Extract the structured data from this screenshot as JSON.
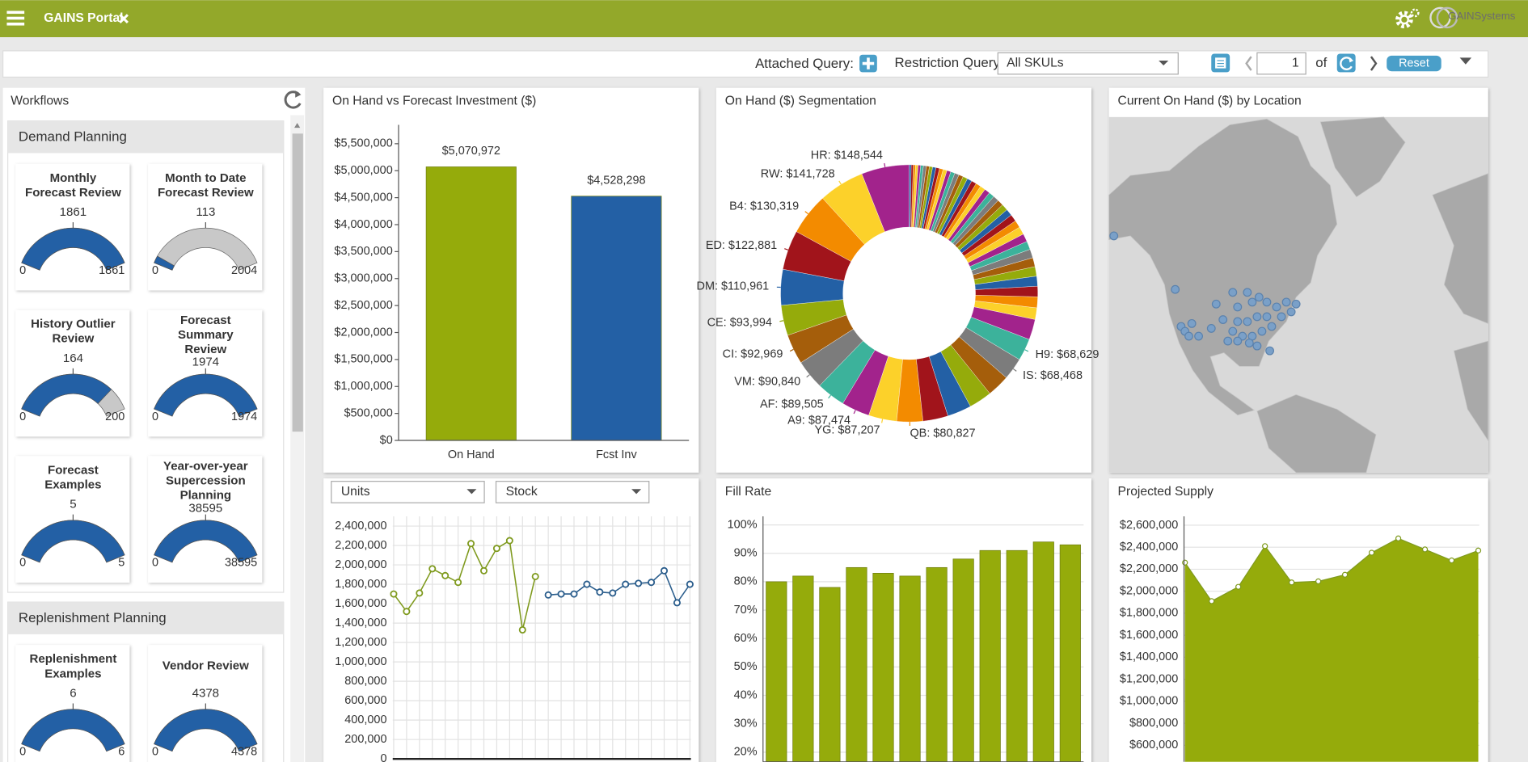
{
  "header": {
    "title": "GAINS Portal",
    "logo": "GAINSystems"
  },
  "toolbar": {
    "attached_query": "Attached Query:",
    "restriction_query": "Restriction Query:",
    "restriction_value": "All SKULs",
    "page": 1,
    "of": "of",
    "reset": "Reset"
  },
  "workflows": {
    "title": "Workflows",
    "groups": [
      {
        "name": "Demand Planning",
        "items": [
          {
            "title_lines": [
              "Monthly",
              "Forecast Review"
            ],
            "value": 1861,
            "min": 0,
            "max": 1861
          },
          {
            "title_lines": [
              "Month to Date",
              "Forecast Review"
            ],
            "value": 113,
            "min": 0,
            "max": 2004
          },
          {
            "title_lines": [
              "History Outlier",
              "Review"
            ],
            "value": 164,
            "min": 0,
            "max": 200
          },
          {
            "title_lines": [
              "Forecast",
              "Summary",
              "Review"
            ],
            "value": 1974,
            "min": 0,
            "max": 1974
          },
          {
            "title_lines": [
              "Forecast",
              "Examples"
            ],
            "value": 5,
            "min": 0,
            "max": 5
          },
          {
            "title_lines": [
              "Year-over-year",
              "Supercession",
              "Planning"
            ],
            "value": 38595,
            "min": 0,
            "max": 38595
          }
        ]
      },
      {
        "name": "Replenishment Planning",
        "items": [
          {
            "title_lines": [
              "Replenishment",
              "Examples"
            ],
            "value": 6,
            "min": 0,
            "max": 6
          },
          {
            "title_lines": [
              "Vendor Review"
            ],
            "value": 4378,
            "min": 0,
            "max": 4378
          }
        ]
      }
    ]
  },
  "chart_data": [
    {
      "type": "bar",
      "title": "On Hand vs Forecast Investment ($)",
      "categories": [
        "On Hand",
        "Fcst Inv"
      ],
      "values": [
        5070972,
        4528298
      ],
      "value_labels": [
        "$5,070,972",
        "$4,528,298"
      ],
      "colors": [
        "#95ab0b",
        "#2360a5"
      ],
      "ylim": [
        0,
        5850000
      ],
      "grid": false,
      "yticks": [
        {
          "value": 0,
          "label": "$0"
        },
        {
          "value": 500000,
          "label": "$500,000"
        },
        {
          "value": 1000000,
          "label": "$1,000,000"
        },
        {
          "value": 1500000,
          "label": "$1,500,000"
        },
        {
          "value": 2000000,
          "label": "$2,000,000"
        },
        {
          "value": 2500000,
          "label": "$2,500,000"
        },
        {
          "value": 3000000,
          "label": "$3,000,000"
        },
        {
          "value": 3500000,
          "label": "$3,500,000"
        },
        {
          "value": 4000000,
          "label": "$4,000,000"
        },
        {
          "value": 4500000,
          "label": "$4,500,000"
        },
        {
          "value": 5000000,
          "label": "$5,000,000"
        },
        {
          "value": 5500000,
          "label": "$5,500,000"
        }
      ]
    },
    {
      "type": "pie",
      "title": "On Hand ($) Segmentation",
      "donut": true,
      "colors": [
        "#a2238c",
        "#fcd12a",
        "#f38b00",
        "#a1141b",
        "#2360a5",
        "#95ab0b",
        "#a55e0b",
        "#7c7c7c",
        "#3cb29b"
      ],
      "values": [
        148544,
        141728,
        130319,
        122881,
        110961,
        93994,
        92969,
        90840,
        89505,
        87474,
        87207,
        80827,
        78000,
        75000,
        71000,
        70000,
        68468,
        68629,
        63469,
        36000,
        34000,
        32500,
        31000,
        29500,
        28000,
        27000,
        26000,
        25000,
        24000,
        23000,
        22000,
        21000,
        20000,
        19000,
        18000,
        17500,
        17000,
        16500,
        16000,
        15500,
        15000,
        14500,
        14000,
        13500,
        13000,
        12500,
        12000,
        11500,
        11000,
        10500,
        10000,
        9500,
        9000,
        8500,
        8000,
        7500,
        7000,
        6500,
        6000
      ],
      "value_labels": [
        "HR: $148,544",
        "RW: $141,728",
        "B4: $130,319",
        "ED: $122,881",
        "DM: $110,961",
        "CE: $93,994",
        "CI: $92,969",
        "VM: $90,840",
        "AF: $89,505",
        "A9: $87,474",
        "YG: $87,207",
        "QB: $80,827",
        null,
        null,
        null,
        null,
        "IS: $68,468",
        "H9: $68,629",
        null,
        null,
        null,
        null,
        null,
        null,
        null,
        null,
        null,
        null,
        null,
        null,
        null,
        null,
        null,
        null,
        null,
        null,
        null,
        null,
        null,
        null,
        null,
        null,
        null,
        null,
        null,
        null,
        null,
        null,
        null,
        null,
        null,
        null,
        null,
        null,
        null,
        null,
        null,
        null,
        null
      ]
    },
    {
      "type": "map",
      "title": "Current On Hand ($) by Location"
    },
    {
      "type": "line",
      "controls": [
        "Units",
        "Stock"
      ],
      "grid": true,
      "categories": [
        null,
        null,
        null,
        null,
        null,
        null,
        null,
        null,
        null,
        null,
        null,
        null,
        null,
        null,
        null,
        null,
        null,
        null,
        null,
        null,
        null,
        null,
        null,
        null
      ],
      "series": [
        {
          "color": "#7f9a1e",
          "values": [
            1700000,
            1520000,
            1710000,
            1960000,
            1890000,
            1820000,
            2220000,
            1940000,
            2170000,
            2250000,
            1330000,
            1880000,
            null,
            null,
            null,
            null,
            null,
            null,
            null,
            null,
            null,
            null,
            null,
            null
          ]
        },
        {
          "color": "#2a5d8c",
          "values": [
            null,
            null,
            null,
            null,
            null,
            null,
            null,
            null,
            null,
            null,
            null,
            null,
            1690000,
            1700000,
            1700000,
            1800000,
            1720000,
            1710000,
            1800000,
            1810000,
            1820000,
            1940000,
            1610000,
            1800000
          ]
        }
      ],
      "ylim": [
        0,
        2500000
      ],
      "yticks": [
        0,
        {
          "value": 200000,
          "label": "200,000"
        },
        {
          "value": 400000,
          "label": "400,000"
        },
        {
          "value": 600000,
          "label": "600,000"
        },
        {
          "value": 800000,
          "label": "800,000"
        },
        {
          "value": 1000000,
          "label": "1,000,000"
        },
        {
          "value": 1200000,
          "label": "1,200,000"
        },
        {
          "value": 1400000,
          "label": "1,400,000"
        },
        {
          "value": 1600000,
          "label": "1,600,000"
        },
        {
          "value": 1800000,
          "label": "1,800,000"
        },
        {
          "value": 2000000,
          "label": "2,000,000"
        },
        {
          "value": 2200000,
          "label": "2,200,000"
        },
        {
          "value": 2400000,
          "label": "2,400,000"
        }
      ]
    },
    {
      "type": "bar",
      "title": "Fill Rate",
      "color": "#95ab0b",
      "grid": true,
      "categories": [
        null,
        null,
        null,
        null,
        null,
        null,
        null,
        null,
        null,
        null,
        null,
        null
      ],
      "values": [
        80,
        82,
        78,
        85,
        83,
        82,
        85,
        88,
        91,
        91,
        94,
        93
      ],
      "ylim": [
        16.6,
        103
      ],
      "yticks": [
        {
          "value": 20,
          "label": "20%"
        },
        {
          "value": 30,
          "label": "30%"
        },
        {
          "value": 40,
          "label": "40%"
        },
        {
          "value": 50,
          "label": "50%"
        },
        {
          "value": 60,
          "label": "60%"
        },
        {
          "value": 70,
          "label": "70%"
        },
        {
          "value": 80,
          "label": "80%"
        },
        {
          "value": 90,
          "label": "90%"
        },
        {
          "value": 100,
          "label": "100%"
        }
      ]
    },
    {
      "type": "area",
      "title": "Projected Supply",
      "color": "#95ab0b",
      "grid": true,
      "categories": [
        null,
        null,
        null,
        null,
        null,
        null,
        null,
        null,
        null,
        null,
        null,
        null
      ],
      "values": [
        2260000,
        1910000,
        2040000,
        2410000,
        2080000,
        2090000,
        2150000,
        2350000,
        2480000,
        2380000,
        2280000,
        2370000
      ],
      "ylim": [
        450000,
        2680000
      ],
      "yticks": [
        {
          "value": 600000,
          "label": "$600,000"
        },
        {
          "value": 800000,
          "label": "$800,000"
        },
        {
          "value": 1000000,
          "label": "$1,000,000"
        },
        {
          "value": 1200000,
          "label": "$1,200,000"
        },
        {
          "value": 1400000,
          "label": "$1,400,000"
        },
        {
          "value": 1600000,
          "label": "$1,600,000"
        },
        {
          "value": 1800000,
          "label": "$1,800,000"
        },
        {
          "value": 2000000,
          "label": "$2,000,000"
        },
        {
          "value": 2200000,
          "label": "$2,200,000"
        },
        {
          "value": 2400000,
          "label": "$2,400,000"
        },
        {
          "value": 2600000,
          "label": "$2,600,000"
        }
      ]
    }
  ]
}
